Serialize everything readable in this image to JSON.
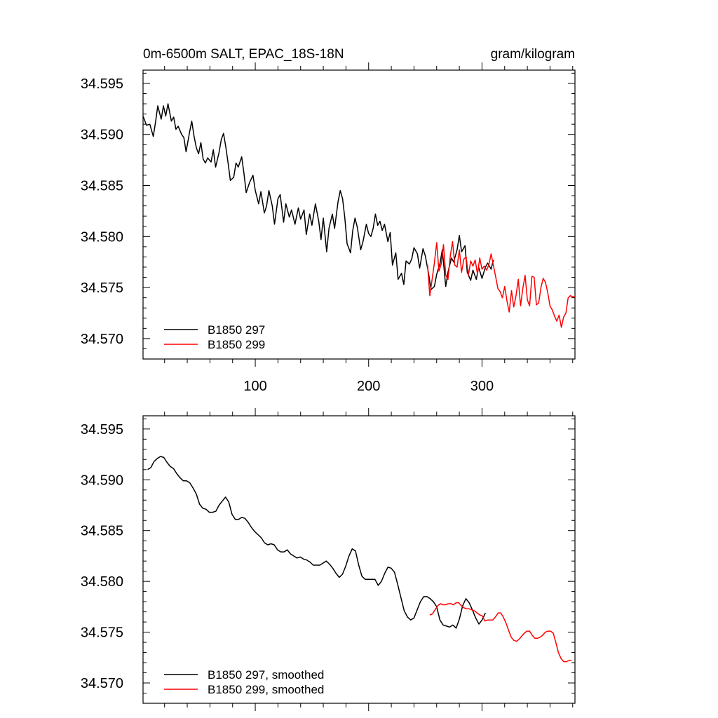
{
  "chart_data": [
    {
      "type": "line",
      "title": "0m-6500m SALT, EPAC_18S-18N",
      "title_right": "gram/kilogram",
      "xlabel": "",
      "ylabel": "",
      "xlim": [
        1,
        382
      ],
      "ylim": [
        34.568,
        34.5963
      ],
      "x_ticks": [
        100,
        200,
        300
      ],
      "x_tick_labels": [
        "100",
        "200",
        "300"
      ],
      "y_ticks": [
        34.57,
        34.575,
        34.58,
        34.585,
        34.59,
        34.595
      ],
      "y_tick_labels": [
        "34.570",
        "34.575",
        "34.580",
        "34.585",
        "34.590",
        "34.595"
      ],
      "legend_position": "bottom-left",
      "series": [
        {
          "name": "B1850 297",
          "color": "#000000",
          "x": [
            1,
            4,
            7,
            10,
            12,
            14,
            17,
            19,
            21,
            23,
            26,
            28,
            30,
            32,
            35,
            37,
            39,
            42,
            44,
            46,
            48,
            50,
            52,
            54,
            56,
            58,
            61,
            63,
            65,
            68,
            70,
            72,
            74,
            76,
            78,
            81,
            83,
            85,
            88,
            90,
            92,
            95,
            98,
            100,
            103,
            105,
            108,
            110,
            112,
            115,
            117,
            120,
            122,
            125,
            127,
            130,
            132,
            135,
            138,
            140,
            143,
            145,
            148,
            150,
            153,
            156,
            158,
            160,
            163,
            165,
            168,
            170,
            173,
            175,
            177,
            179,
            181,
            184,
            186,
            188,
            190,
            193,
            195,
            198,
            200,
            202,
            204,
            206,
            208,
            210,
            212,
            214,
            217,
            219,
            221,
            224,
            226,
            229,
            231,
            233,
            236,
            238,
            240,
            243,
            245,
            248,
            250,
            253,
            255,
            258,
            260,
            263,
            265,
            268,
            270,
            273,
            275,
            278,
            280,
            282,
            285,
            287,
            290,
            292,
            295,
            297,
            300,
            303,
            305,
            308,
            310
          ],
          "y": [
            34.5918,
            34.5909,
            34.591,
            34.5898,
            34.5912,
            34.5928,
            34.5915,
            34.5928,
            34.5918,
            34.593,
            34.5913,
            34.5917,
            34.5905,
            34.5908,
            34.59,
            34.5897,
            34.5883,
            34.5902,
            34.5913,
            34.5898,
            34.5887,
            34.5881,
            34.5892,
            34.5876,
            34.5872,
            34.5877,
            34.5873,
            34.5885,
            34.5868,
            34.5882,
            34.5895,
            34.5901,
            34.5888,
            34.5872,
            34.5855,
            34.5858,
            34.5872,
            34.5868,
            34.5878,
            34.5862,
            34.5843,
            34.5853,
            34.586,
            34.5845,
            34.5832,
            34.5844,
            34.5823,
            34.583,
            34.5845,
            34.583,
            34.5812,
            34.5837,
            34.5841,
            34.5814,
            34.5832,
            34.5819,
            34.5826,
            34.5812,
            34.5828,
            34.5817,
            34.5826,
            34.5802,
            34.5822,
            34.5811,
            34.5832,
            34.5815,
            34.5797,
            34.5818,
            34.5785,
            34.5808,
            34.5822,
            34.5808,
            34.5834,
            34.5845,
            34.5837,
            34.5818,
            34.5793,
            34.5784,
            34.5806,
            34.5818,
            34.5809,
            34.5787,
            34.5795,
            34.5812,
            34.5803,
            34.58,
            34.5808,
            34.5822,
            34.5811,
            34.5815,
            34.5806,
            34.5812,
            34.5795,
            34.5804,
            34.5772,
            34.5784,
            34.5758,
            34.5764,
            34.5753,
            34.5776,
            34.5773,
            34.5778,
            34.5789,
            34.5783,
            34.5769,
            34.5788,
            34.5781,
            34.5763,
            34.5748,
            34.5751,
            34.5763,
            34.5774,
            34.5787,
            34.5751,
            34.5765,
            34.5779,
            34.5775,
            34.5787,
            34.5801,
            34.5785,
            34.5791,
            34.5765,
            34.5757,
            34.5767,
            34.5758,
            34.577,
            34.5759,
            34.577,
            34.5774,
            34.5768,
            34.5777
          ],
          "smoothed": [
            34.591,
            34.5912,
            34.5918,
            34.5921,
            34.5923,
            34.5922,
            34.5917,
            34.5913,
            34.5911,
            34.5906,
            34.5902,
            34.5899,
            34.5899,
            34.5897,
            34.5892,
            34.5886,
            34.5876,
            34.5872,
            34.5871,
            34.5868,
            34.5868,
            34.5869,
            34.5875,
            34.5879,
            34.5883,
            34.5878,
            34.5866,
            34.5861,
            34.5861,
            34.5863,
            34.5862,
            34.5858,
            34.5853,
            34.5849,
            34.5846,
            34.5843,
            34.5838,
            34.5836,
            34.5837,
            34.5836,
            34.5831,
            34.5829,
            34.5829,
            34.5831,
            34.5827,
            34.5825,
            34.5823,
            34.5824,
            34.5822,
            34.5821,
            34.5819,
            34.5816,
            34.5816,
            34.5816,
            34.5818,
            34.582,
            34.5817,
            34.5813,
            34.5808,
            34.5804,
            34.5807,
            34.5815,
            34.5825,
            34.5832,
            34.583,
            34.5816,
            34.5805,
            34.5802,
            34.5802,
            34.5802,
            34.5802,
            34.5796,
            34.58,
            34.5808,
            34.5814,
            34.5813,
            34.5809,
            34.5797,
            34.5784,
            34.5771,
            34.5765,
            34.5762,
            34.5764,
            34.5772,
            34.578,
            34.5785,
            34.5785,
            34.5783,
            34.578,
            34.5775,
            34.5762,
            34.5757,
            34.5756,
            34.5755,
            34.5757,
            34.5754,
            34.5763,
            34.5776,
            34.5783,
            34.5779,
            34.5772,
            34.5764,
            34.5758,
            34.5762,
            34.5769
          ]
        },
        {
          "name": "B1850 299",
          "color": "#ff0000",
          "x": [
            252,
            254,
            256,
            258,
            260,
            262,
            264,
            266,
            268,
            270,
            272,
            274,
            276,
            278,
            280,
            282,
            284,
            286,
            288,
            290,
            292,
            294,
            296,
            298,
            300,
            302,
            304,
            306,
            308,
            310,
            312,
            314,
            316,
            318,
            320,
            322,
            324,
            326,
            328,
            330,
            332,
            334,
            336,
            338,
            340,
            342,
            344,
            346,
            348,
            350,
            352,
            354,
            356,
            358,
            360,
            362,
            364,
            366,
            368,
            370,
            372,
            374,
            376,
            378,
            380,
            382
          ],
          "y": [
            34.5772,
            34.5742,
            34.5758,
            34.5774,
            34.5794,
            34.5766,
            34.5773,
            34.5792,
            34.5762,
            34.5758,
            34.5781,
            34.5795,
            34.5772,
            34.577,
            34.5787,
            34.5765,
            34.5778,
            34.578,
            34.5762,
            34.5776,
            34.5771,
            34.5777,
            34.5763,
            34.5779,
            34.5768,
            34.5771,
            34.5767,
            34.5772,
            34.5783,
            34.5772,
            34.5761,
            34.5749,
            34.5746,
            34.574,
            34.5751,
            34.5737,
            34.5726,
            34.5747,
            34.5731,
            34.5742,
            34.5758,
            34.5732,
            34.5749,
            34.5762,
            34.5738,
            34.5732,
            34.5761,
            34.576,
            34.5733,
            34.5735,
            34.575,
            34.5759,
            34.5755,
            34.5745,
            34.5732,
            34.5728,
            34.5722,
            34.5717,
            34.5723,
            34.5711,
            34.5721,
            34.5725,
            34.574,
            34.5742,
            34.5741,
            34.5741
          ],
          "smoothed": [
            34.5767,
            34.5768,
            34.5772,
            34.5776,
            34.5778,
            34.5777,
            34.5777,
            34.5778,
            34.5778,
            34.5777,
            34.5779,
            34.5779,
            34.5776,
            34.5774,
            34.5773,
            34.5773,
            34.5772,
            34.5771,
            34.5769,
            34.5767,
            34.5766,
            34.5761,
            34.5762,
            34.5762,
            34.5762,
            34.5765,
            34.5769,
            34.5769,
            34.5765,
            34.5759,
            34.5752,
            34.5745,
            34.5742,
            34.5741,
            34.5743,
            34.5746,
            34.5749,
            34.5751,
            34.5751,
            34.5747,
            34.5744,
            34.5744,
            34.5745,
            34.5747,
            34.575,
            34.5751,
            34.5751,
            34.5749,
            34.574,
            34.573,
            34.5724,
            34.5721,
            34.5721,
            34.5722,
            34.5722
          ]
        }
      ]
    },
    {
      "type": "line",
      "title": "",
      "xlim": [
        1,
        382
      ],
      "ylim": [
        34.568,
        34.5963
      ],
      "y_ticks": [
        34.57,
        34.575,
        34.58,
        34.585,
        34.59,
        34.595
      ],
      "y_tick_labels": [
        "34.570",
        "34.575",
        "34.580",
        "34.585",
        "34.590",
        "34.595"
      ],
      "legend_position": "bottom-left",
      "series": [
        {
          "name": "B1850 297, smoothed",
          "color": "#000000"
        },
        {
          "name": "B1850 299, smoothed",
          "color": "#ff0000"
        }
      ]
    }
  ]
}
